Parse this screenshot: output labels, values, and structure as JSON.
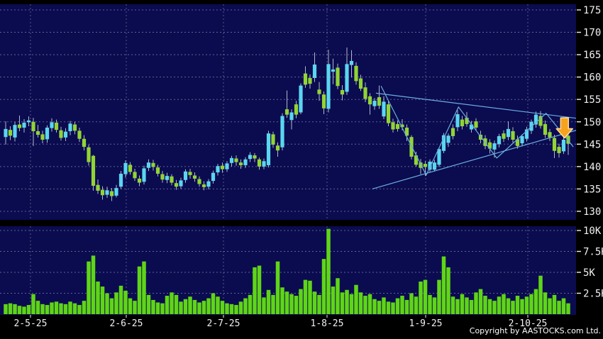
{
  "copyright": "Copyright by AASTOCKS.com Ltd.",
  "colors": {
    "background": "#000000",
    "panel": "#0b0b50",
    "grid": "#8888aa",
    "up_candle": "#5bd6f0",
    "down_candle": "#92d434",
    "wick": "#b0b8c8",
    "volume_bar": "#5fd517",
    "trendline": "#6aaede",
    "arrow_fill": "#f6a21e",
    "arrow_outline": "#ffdf9e",
    "axis_text": "#f0f0f0"
  },
  "chart_data": {
    "type": "candlestick",
    "title": "",
    "legend": [],
    "grid": "dashed",
    "price_axis": {
      "side": "right",
      "ticks": [
        {
          "label": "175",
          "price": 175
        },
        {
          "label": "170",
          "price": 170
        },
        {
          "label": "165",
          "price": 165
        },
        {
          "label": "160",
          "price": 160
        },
        {
          "label": "155",
          "price": 155
        },
        {
          "label": "150",
          "price": 150
        },
        {
          "label": "145",
          "price": 145
        },
        {
          "label": "140",
          "price": 140
        },
        {
          "label": "135",
          "price": 135
        },
        {
          "label": "130",
          "price": 130
        }
      ],
      "range": [
        129,
        176
      ]
    },
    "volume_axis": {
      "side": "right",
      "unit": "K",
      "ticks": [
        {
          "label": "10K",
          "v": 10
        },
        {
          "label": "7.5K",
          "v": 7.5
        },
        {
          "label": "5K",
          "v": 5
        },
        {
          "label": "2.5K",
          "v": 2.5
        }
      ],
      "range": [
        0,
        11
      ]
    },
    "x_axis": {
      "ticks": [
        {
          "label": "2-5-25",
          "i": 5.38
        },
        {
          "label": "2-6-25",
          "i": 26.15
        },
        {
          "label": "2-7-25",
          "i": 47.23
        },
        {
          "label": "1-8-25",
          "i": 69.69
        },
        {
          "label": "1-9-25",
          "i": 91.08
        },
        {
          "label": "2-10-25",
          "i": 113.23
        }
      ]
    },
    "candles_ohlcv": [
      [
        146.6,
        150.1,
        144.9,
        148.4,
        1.2
      ],
      [
        148.2,
        149.0,
        145.9,
        146.9,
        1.3
      ],
      [
        146.5,
        150.0,
        145.6,
        149.3,
        1.2
      ],
      [
        149.4,
        151.4,
        147.9,
        148.6,
        1.0
      ],
      [
        148.7,
        150.6,
        147.6,
        149.8,
        0.9
      ],
      [
        149.9,
        151.2,
        149.0,
        150.3,
        1.1
      ],
      [
        150.0,
        150.9,
        144.6,
        147.9,
        2.4
      ],
      [
        147.9,
        149.3,
        146.5,
        147.1,
        1.6
      ],
      [
        147.2,
        148.0,
        145.2,
        146.0,
        1.2
      ],
      [
        146.1,
        149.2,
        145.3,
        148.7,
        1.1
      ],
      [
        148.6,
        150.8,
        147.8,
        149.9,
        1.4
      ],
      [
        149.8,
        150.5,
        147.6,
        148.2,
        1.5
      ],
      [
        148.1,
        148.9,
        145.8,
        146.4,
        1.3
      ],
      [
        146.5,
        148.6,
        145.7,
        147.8,
        1.2
      ],
      [
        147.9,
        150.2,
        147.0,
        149.6,
        1.5
      ],
      [
        149.4,
        150.0,
        147.2,
        148.0,
        1.3
      ],
      [
        148.0,
        148.7,
        145.5,
        146.2,
        1.1
      ],
      [
        146.2,
        147.0,
        143.6,
        144.4,
        1.6
      ],
      [
        144.3,
        144.9,
        140.2,
        141.0,
        6.3
      ],
      [
        142.4,
        142.6,
        134.6,
        135.7,
        7.0
      ],
      [
        135.9,
        137.1,
        133.9,
        134.6,
        3.9
      ],
      [
        134.8,
        135.6,
        132.6,
        133.6,
        3.3
      ],
      [
        133.7,
        135.5,
        133.0,
        134.7,
        2.5
      ],
      [
        134.5,
        135.2,
        132.3,
        133.4,
        1.9
      ],
      [
        133.5,
        135.9,
        133.1,
        135.2,
        2.6
      ],
      [
        135.5,
        139.0,
        135.0,
        138.4,
        3.4
      ],
      [
        138.3,
        141.4,
        137.5,
        140.8,
        2.8
      ],
      [
        140.4,
        141.0,
        138.2,
        138.8,
        1.9
      ],
      [
        138.8,
        139.5,
        136.8,
        137.4,
        1.6
      ],
      [
        137.3,
        138.0,
        135.6,
        136.4,
        5.7
      ],
      [
        136.6,
        140.2,
        136.0,
        139.6,
        6.3
      ],
      [
        139.7,
        141.6,
        139.0,
        140.9,
        2.3
      ],
      [
        140.8,
        141.5,
        139.1,
        139.9,
        1.7
      ],
      [
        139.8,
        140.4,
        137.8,
        138.4,
        1.4
      ],
      [
        138.3,
        139.0,
        136.4,
        137.1,
        1.3
      ],
      [
        137.0,
        138.6,
        136.3,
        137.9,
        2.2
      ],
      [
        137.8,
        138.3,
        135.8,
        136.4,
        2.6
      ],
      [
        136.3,
        137.0,
        134.8,
        135.5,
        2.3
      ],
      [
        135.6,
        137.5,
        135.0,
        136.9,
        1.5
      ],
      [
        137.0,
        139.4,
        136.4,
        138.9,
        1.8
      ],
      [
        138.8,
        139.5,
        137.3,
        138.1,
        2.1
      ],
      [
        138.0,
        138.7,
        136.6,
        137.3,
        1.7
      ],
      [
        137.2,
        137.8,
        135.5,
        136.1,
        1.4
      ],
      [
        136.0,
        136.7,
        134.7,
        135.4,
        1.6
      ],
      [
        135.5,
        137.2,
        134.9,
        136.7,
        1.9
      ],
      [
        136.8,
        139.1,
        136.2,
        138.6,
        2.5
      ],
      [
        138.7,
        140.6,
        138.0,
        140.1,
        2.1
      ],
      [
        140.2,
        140.9,
        138.6,
        139.4,
        1.6
      ],
      [
        139.4,
        141.2,
        138.8,
        140.7,
        1.3
      ],
      [
        140.8,
        142.4,
        140.0,
        141.9,
        1.2
      ],
      [
        141.8,
        142.5,
        140.2,
        141.0,
        1.1
      ],
      [
        140.9,
        141.6,
        139.5,
        140.3,
        1.5
      ],
      [
        140.3,
        142.1,
        139.7,
        141.6,
        1.9
      ],
      [
        141.7,
        143.2,
        141.0,
        142.6,
        2.3
      ],
      [
        142.5,
        143.0,
        141.0,
        141.8,
        5.6
      ],
      [
        141.6,
        142.0,
        139.3,
        140.0,
        5.8
      ],
      [
        140.0,
        141.8,
        139.4,
        141.2,
        2.0
      ],
      [
        140.3,
        148.0,
        139.8,
        147.4,
        2.9
      ],
      [
        147.2,
        147.8,
        144.2,
        144.9,
        2.3
      ],
      [
        144.7,
        145.4,
        142.2,
        143.6,
        6.3
      ],
      [
        144.3,
        151.9,
        143.6,
        151.3,
        3.2
      ],
      [
        152.8,
        157.0,
        150.9,
        151.6,
        2.7
      ],
      [
        150.4,
        152.8,
        148.3,
        152.1,
        2.4
      ],
      [
        153.9,
        154.7,
        150.8,
        151.6,
        2.2
      ],
      [
        152.1,
        158.6,
        151.7,
        158.1,
        3.0
      ],
      [
        160.8,
        162.4,
        157.6,
        158.3,
        4.1
      ],
      [
        159.8,
        160.6,
        157.4,
        158.5,
        4.0
      ],
      [
        159.8,
        165.5,
        158.9,
        162.8,
        2.7
      ],
      [
        157.2,
        158.9,
        154.7,
        156.2,
        2.3
      ],
      [
        156.1,
        156.8,
        151.7,
        153.0,
        6.6
      ],
      [
        152.9,
        166.1,
        152.1,
        162.9,
        10.2
      ],
      [
        161.2,
        164.1,
        158.4,
        161.7,
        3.3
      ],
      [
        162.1,
        163.0,
        157.3,
        158.0,
        4.3
      ],
      [
        157.1,
        158.2,
        154.8,
        156.1,
        2.6
      ],
      [
        156.7,
        166.6,
        156.0,
        162.9,
        2.9
      ],
      [
        162.7,
        166.0,
        159.9,
        163.6,
        2.4
      ],
      [
        162.5,
        163.3,
        158.3,
        159.1,
        3.5
      ],
      [
        159.7,
        160.5,
        156.9,
        157.4,
        2.6
      ],
      [
        157.7,
        158.8,
        154.4,
        155.1,
        2.2
      ],
      [
        155.7,
        156.4,
        151.6,
        153.9,
        2.4
      ],
      [
        153.5,
        155.3,
        152.7,
        154.7,
        1.8
      ],
      [
        155.5,
        158.1,
        152.9,
        153.6,
        1.6
      ],
      [
        151.2,
        155.7,
        150.6,
        154.5,
        2.0
      ],
      [
        153.9,
        154.6,
        149.0,
        149.7,
        1.5
      ],
      [
        149.9,
        150.7,
        147.6,
        148.3,
        1.4
      ],
      [
        149.5,
        150.3,
        147.8,
        148.4,
        1.9
      ],
      [
        149.4,
        150.6,
        148.1,
        148.8,
        2.2
      ],
      [
        148.7,
        149.4,
        145.7,
        146.9,
        1.7
      ],
      [
        146.6,
        147.0,
        141.6,
        142.2,
        2.5
      ],
      [
        142.5,
        143.3,
        140.0,
        140.4,
        2.1
      ],
      [
        140.9,
        141.7,
        138.3,
        139.7,
        3.9
      ],
      [
        140.6,
        141.2,
        137.9,
        139.9,
        4.1
      ],
      [
        139.3,
        141.6,
        138.6,
        141.1,
        2.3
      ],
      [
        139.3,
        141.5,
        138.9,
        140.9,
        2.0
      ],
      [
        140.4,
        144.3,
        139.9,
        143.9,
        4.1
      ],
      [
        143.5,
        147.5,
        143.0,
        147.0,
        6.9
      ],
      [
        145.3,
        147.4,
        144.4,
        146.9,
        5.6
      ],
      [
        148.6,
        149.4,
        146.1,
        146.8,
        2.1
      ],
      [
        148.8,
        152.6,
        147.9,
        151.7,
        1.8
      ],
      [
        150.5,
        151.3,
        148.3,
        149.0,
        2.4
      ],
      [
        150.9,
        152.2,
        148.9,
        149.5,
        2.0
      ],
      [
        148.3,
        150.2,
        147.6,
        149.4,
        1.7
      ],
      [
        150.1,
        150.8,
        148.0,
        148.7,
        2.6
      ],
      [
        147.1,
        148.0,
        145.2,
        146.0,
        3.0
      ],
      [
        146.3,
        147.0,
        143.9,
        144.6,
        2.2
      ],
      [
        145.4,
        146.1,
        142.9,
        144.0,
        1.8
      ],
      [
        143.8,
        145.8,
        142.0,
        145.2,
        1.6
      ],
      [
        145.0,
        147.3,
        144.3,
        146.8,
        2.1
      ],
      [
        147.4,
        148.1,
        145.5,
        146.2,
        2.4
      ],
      [
        146.6,
        150.1,
        145.9,
        148.4,
        1.9
      ],
      [
        147.9,
        148.8,
        145.3,
        146.0,
        1.6
      ],
      [
        146.1,
        146.9,
        144.0,
        144.6,
        2.2
      ],
      [
        145.2,
        147.2,
        144.5,
        146.8,
        1.8
      ],
      [
        146.2,
        148.9,
        145.6,
        148.3,
        2.1
      ],
      [
        148.0,
        150.5,
        147.3,
        150.0,
        2.4
      ],
      [
        149.4,
        152.3,
        148.7,
        151.6,
        3.0
      ],
      [
        151.3,
        152.4,
        148.5,
        149.1,
        4.6
      ],
      [
        149.5,
        150.3,
        146.4,
        147.1,
        2.6
      ],
      [
        147.7,
        148.4,
        145.7,
        146.5,
        1.9
      ],
      [
        146.4,
        147.1,
        141.9,
        143.5,
        2.3
      ],
      [
        144.4,
        145.1,
        142.0,
        143.0,
        1.6
      ],
      [
        143.4,
        146.6,
        142.8,
        146.0,
        1.9
      ],
      [
        146.9,
        147.4,
        142.6,
        145.1,
        1.3
      ]
    ],
    "annotations": {
      "resistance_line": {
        "from": {
          "i": 80.3,
          "price": 156.4
        },
        "to": {
          "i": 123.7,
          "price": 150.8
        }
      },
      "support_line": {
        "from": {
          "i": 79.5,
          "price": 135.0
        },
        "to": {
          "i": 123.7,
          "price": 148.1
        }
      },
      "zigzag": [
        {
          "i": 81.4,
          "price": 158.0
        },
        {
          "i": 91.2,
          "price": 138.1
        },
        {
          "i": 98.2,
          "price": 153.3
        },
        {
          "i": 106.5,
          "price": 141.9
        },
        {
          "i": 117.2,
          "price": 151.9
        },
        {
          "i": 123.1,
          "price": 144.4
        }
      ],
      "down_arrow": {
        "i": 121.2,
        "price_top": 150.9,
        "price_tip": 146.4
      }
    }
  }
}
